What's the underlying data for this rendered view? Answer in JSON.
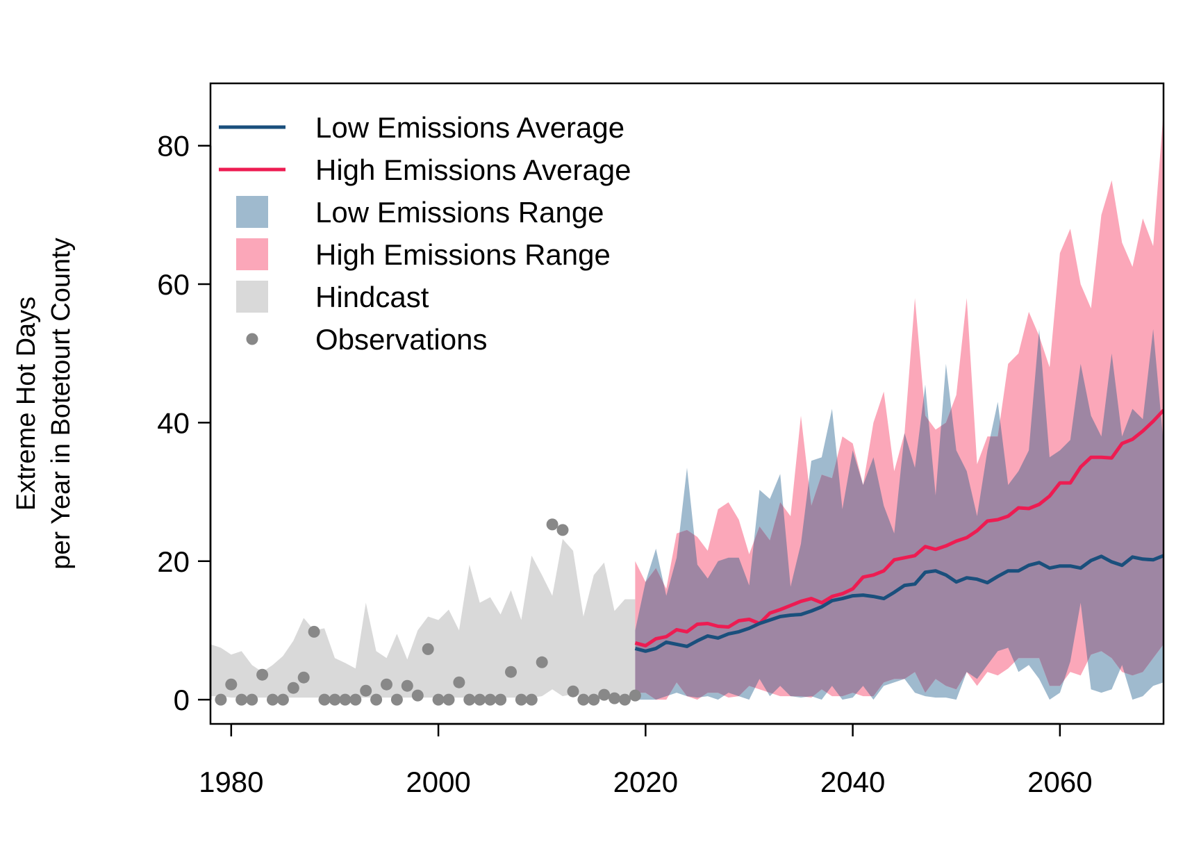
{
  "chart_data": {
    "type": "area",
    "title": "",
    "xlabel": "",
    "ylabel": [
      "Extreme Hot Days",
      "per Year in Botetourt County"
    ],
    "xlim": [
      1978,
      2070
    ],
    "ylim": [
      -3.5,
      89
    ],
    "x_ticks": [
      1980,
      2000,
      2020,
      2040,
      2060
    ],
    "y_ticks": [
      0,
      20,
      40,
      60,
      80
    ],
    "grid": false,
    "legend_position": "top-left",
    "colors": {
      "low_line": "#1a4f7c",
      "high_line": "#ed1c52",
      "low_range": "#9fbace",
      "high_range": "#fba7b9",
      "overlap": "#9e86a3",
      "hindcast": "#d9d9d9",
      "observations": "#888888"
    },
    "legend": [
      {
        "label": "Low Emissions Average",
        "kind": "line",
        "series": "low_avg"
      },
      {
        "label": "High Emissions Average",
        "kind": "line",
        "series": "high_avg"
      },
      {
        "label": "Low Emissions Range",
        "kind": "box",
        "series": "low_range"
      },
      {
        "label": "High Emissions Range",
        "kind": "box",
        "series": "high_range"
      },
      {
        "label": "Hindcast",
        "kind": "box",
        "series": "hindcast"
      },
      {
        "label": "Observations",
        "kind": "point",
        "series": "observations"
      }
    ],
    "observations": {
      "x": [
        1979,
        1980,
        1981,
        1982,
        1983,
        1984,
        1985,
        1986,
        1987,
        1988,
        1989,
        1990,
        1991,
        1992,
        1993,
        1994,
        1995,
        1996,
        1997,
        1998,
        1999,
        2000,
        2001,
        2002,
        2003,
        2004,
        2005,
        2006,
        2007,
        2008,
        2009,
        2010,
        2011,
        2012,
        2013,
        2014,
        2015,
        2016,
        2017,
        2018,
        2019
      ],
      "y": [
        0,
        2.2,
        0,
        0,
        3.6,
        0,
        0,
        1.7,
        3.2,
        9.8,
        0,
        0,
        0,
        0,
        1.3,
        0,
        2.2,
        0,
        2,
        0.6,
        7.3,
        0,
        0,
        2.5,
        0,
        0,
        0,
        0,
        4,
        0,
        0,
        5.4,
        25.3,
        24.5,
        1.2,
        0,
        0,
        0.7,
        0.2,
        0,
        0.6
      ]
    },
    "hindcast": {
      "x": [
        1978,
        1979,
        1980,
        1981,
        1982,
        1983,
        1984,
        1985,
        1986,
        1987,
        1988,
        1989,
        1990,
        1991,
        1992,
        1993,
        1994,
        1995,
        1996,
        1997,
        1998,
        1999,
        2000,
        2001,
        2002,
        2003,
        2004,
        2005,
        2006,
        2007,
        2008,
        2009,
        2010,
        2011,
        2012,
        2013,
        2014,
        2015,
        2016,
        2017,
        2018,
        2019
      ],
      "lower": [
        0.5,
        0.5,
        0.3,
        0.3,
        0.3,
        0.3,
        0.3,
        0.3,
        0.3,
        0.3,
        0.3,
        0.3,
        0.3,
        0.3,
        0.3,
        0.3,
        0.3,
        0.3,
        0.3,
        0.3,
        0.3,
        0.3,
        0.3,
        0.3,
        0.3,
        0.3,
        0.3,
        0.3,
        0.3,
        0.3,
        0.3,
        0.3,
        0.5,
        1.5,
        0.5,
        0.8,
        0.5,
        0.5,
        0.5,
        0.5,
        0.5,
        0.5
      ],
      "upper": [
        8,
        7.5,
        6.5,
        7,
        5,
        4,
        5,
        6.3,
        8.5,
        11.8,
        10,
        10.3,
        6,
        5.3,
        4.5,
        14,
        7,
        6,
        9.5,
        5.8,
        10,
        12,
        11.5,
        13,
        10,
        19.5,
        14,
        14.8,
        12.3,
        15.8,
        11.5,
        20.8,
        18,
        15,
        23.2,
        21.5,
        12,
        18,
        19.8,
        12.8,
        14.5,
        14.5
      ]
    },
    "low_range": {
      "x": [
        2019,
        2020,
        2021,
        2022,
        2023,
        2024,
        2025,
        2026,
        2027,
        2028,
        2029,
        2030,
        2031,
        2032,
        2033,
        2034,
        2035,
        2036,
        2037,
        2038,
        2039,
        2040,
        2041,
        2042,
        2043,
        2044,
        2045,
        2046,
        2047,
        2048,
        2049,
        2050,
        2051,
        2052,
        2053,
        2054,
        2055,
        2056,
        2057,
        2058,
        2059,
        2060,
        2061,
        2062,
        2063,
        2064,
        2065,
        2066,
        2067,
        2068,
        2069,
        2070
      ],
      "lower": [
        0,
        0,
        0,
        0.5,
        1,
        0.5,
        0.3,
        0.5,
        0,
        1,
        0.5,
        0,
        3,
        0.5,
        2,
        0.5,
        0.3,
        0.5,
        0,
        2,
        0,
        0.3,
        2,
        0,
        2,
        2.5,
        3,
        1,
        0.5,
        0.3,
        0.3,
        0,
        4,
        3,
        5,
        7,
        7.5,
        4,
        5,
        3,
        0,
        1,
        5.5,
        14,
        1.5,
        1,
        1.5,
        5,
        0,
        0.5,
        2,
        2.5
      ],
      "upper": [
        10,
        17,
        21.8,
        15,
        20.5,
        33.5,
        19.5,
        17.5,
        20,
        20.5,
        20.5,
        16.5,
        30.3,
        29,
        32.6,
        16.3,
        22.5,
        34.5,
        35,
        42,
        27.5,
        36,
        31,
        35,
        28,
        24,
        38.5,
        33.5,
        45.5,
        29.5,
        48.5,
        36,
        33,
        26.5,
        36,
        43,
        31,
        33,
        36,
        53.5,
        35,
        36,
        37.5,
        48.5,
        41,
        38,
        50,
        38,
        42,
        40.5,
        53.5,
        37
      ]
    },
    "high_range": {
      "x": [
        2019,
        2020,
        2021,
        2022,
        2023,
        2024,
        2025,
        2026,
        2027,
        2028,
        2029,
        2030,
        2031,
        2032,
        2033,
        2034,
        2035,
        2036,
        2037,
        2038,
        2039,
        2040,
        2041,
        2042,
        2043,
        2044,
        2045,
        2046,
        2047,
        2048,
        2049,
        2050,
        2051,
        2052,
        2053,
        2054,
        2055,
        2056,
        2057,
        2058,
        2059,
        2060,
        2061,
        2062,
        2063,
        2064,
        2065,
        2066,
        2067,
        2068,
        2069,
        2070
      ],
      "lower": [
        1,
        1,
        0,
        0,
        2.5,
        0.5,
        0,
        1,
        1,
        0.3,
        0.5,
        2,
        1.5,
        1,
        0.5,
        0.5,
        0.5,
        0.3,
        1.5,
        0.5,
        0.5,
        1,
        0.5,
        0.5,
        2.5,
        3,
        3,
        4,
        1,
        3,
        2,
        1.5,
        4,
        2,
        4,
        3.5,
        4.5,
        6,
        6,
        6,
        2,
        2,
        4,
        3.5,
        6.5,
        7,
        6,
        4,
        3.5,
        4,
        6,
        8
      ],
      "upper": [
        20,
        17,
        19,
        16,
        24,
        24.5,
        23.5,
        21.5,
        27.5,
        28.5,
        26,
        21,
        25,
        23,
        28.5,
        26.5,
        41,
        28,
        32.5,
        32,
        38,
        37,
        31,
        40,
        44.5,
        33,
        38.5,
        58,
        41,
        39,
        40,
        44,
        58,
        34,
        38,
        38,
        48.5,
        50,
        56,
        52.5,
        48,
        64.5,
        68,
        60,
        56.5,
        70,
        75,
        66,
        62.5,
        69.5,
        65.5,
        85
      ]
    },
    "low_avg": {
      "x": [
        2019,
        2020,
        2021,
        2022,
        2023,
        2024,
        2025,
        2026,
        2027,
        2028,
        2029,
        2030,
        2031,
        2032,
        2033,
        2034,
        2035,
        2036,
        2037,
        2038,
        2039,
        2040,
        2041,
        2042,
        2043,
        2044,
        2045,
        2046,
        2047,
        2048,
        2049,
        2050,
        2051,
        2052,
        2053,
        2054,
        2055,
        2056,
        2057,
        2058,
        2059,
        2060,
        2061,
        2062,
        2063,
        2064,
        2065,
        2066,
        2067,
        2068,
        2069,
        2070
      ],
      "y": [
        7.4,
        7,
        7.4,
        8.3,
        8,
        7.7,
        8.5,
        9.2,
        8.9,
        9.5,
        9.8,
        10.3,
        11,
        11.5,
        12,
        12.2,
        12.3,
        12.8,
        13.4,
        14.3,
        14.6,
        15,
        15.1,
        14.9,
        14.6,
        15.5,
        16.5,
        16.7,
        18.4,
        18.6,
        18,
        17,
        17.6,
        17.4,
        16.9,
        17.8,
        18.6,
        18.6,
        19.4,
        19.8,
        19,
        19.3,
        19.3,
        19,
        20.1,
        20.7,
        19.9,
        19.4,
        20.6,
        20.3,
        20.2,
        20.8
      ]
    },
    "high_avg": {
      "x": [
        2019,
        2020,
        2021,
        2022,
        2023,
        2024,
        2025,
        2026,
        2027,
        2028,
        2029,
        2030,
        2031,
        2032,
        2033,
        2034,
        2035,
        2036,
        2037,
        2038,
        2039,
        2040,
        2041,
        2042,
        2043,
        2044,
        2045,
        2046,
        2047,
        2048,
        2049,
        2050,
        2051,
        2052,
        2053,
        2054,
        2055,
        2056,
        2057,
        2058,
        2059,
        2060,
        2061,
        2062,
        2063,
        2064,
        2065,
        2066,
        2067,
        2068,
        2069,
        2070
      ],
      "y": [
        8.2,
        7.8,
        8.8,
        9.1,
        10.1,
        9.8,
        10.9,
        11,
        10.6,
        10.5,
        11.4,
        11.6,
        11,
        12.5,
        13,
        13.6,
        14.2,
        14.6,
        14,
        14.9,
        15.3,
        16,
        17.7,
        18,
        18.6,
        20.2,
        20.5,
        20.8,
        22.1,
        21.7,
        22.2,
        22.9,
        23.4,
        24.4,
        25.8,
        26,
        26.5,
        27.7,
        27.6,
        28.2,
        29.4,
        31.3,
        31.3,
        33.6,
        35,
        35,
        34.9,
        37,
        37.6,
        38.8,
        40.2,
        41.8
      ]
    }
  }
}
